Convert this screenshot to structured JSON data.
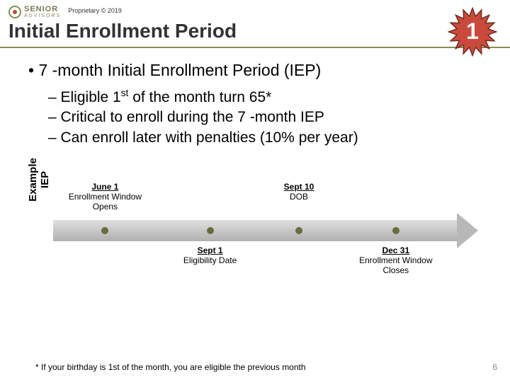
{
  "header": {
    "logo_line1": "SENIOR",
    "logo_line2": "ADVISORS",
    "proprietary": "Proprietary © 2019"
  },
  "title": "Initial Enrollment Period",
  "burst_number": "1",
  "burst": {
    "fill": "#c94a3b",
    "stroke": "#6b2a20"
  },
  "main_bullet": "• 7 -month Initial Enrollment Period (IEP)",
  "sub_bullets": [
    {
      "prefix": "– Eligible 1",
      "sup": "st",
      "suffix": " of the month turn 65*"
    },
    {
      "prefix": "– Critical to enroll during the 7 -month IEP",
      "sup": "",
      "suffix": ""
    },
    {
      "prefix": "– Can enroll later with penalties (10% per year)",
      "sup": "",
      "suffix": ""
    }
  ],
  "vertical_label": {
    "line1": "IEP",
    "line2": "Example"
  },
  "timeline": {
    "arrow_gradient_start": "#e0e0e0",
    "arrow_gradient_end": "#b0b0b0",
    "dot_color": "#6b6b40",
    "points": [
      {
        "pos_pct": 12,
        "top_title": "June 1",
        "top_sub": "Enrollment Window Opens",
        "bottom_title": "",
        "bottom_sub": ""
      },
      {
        "pos_pct": 38,
        "top_title": "",
        "top_sub": "",
        "bottom_title": "Sept 1",
        "bottom_sub": "Eligibility Date"
      },
      {
        "pos_pct": 60,
        "top_title": "Sept 10",
        "top_sub": "DOB",
        "bottom_title": "",
        "bottom_sub": ""
      },
      {
        "pos_pct": 84,
        "top_title": "",
        "top_sub": "",
        "bottom_title": "Dec 31",
        "bottom_sub": "Enrollment Window Closes"
      }
    ]
  },
  "footnote": "* If your birthday is 1st of the month, you are eligible the previous month",
  "page_number": "6"
}
